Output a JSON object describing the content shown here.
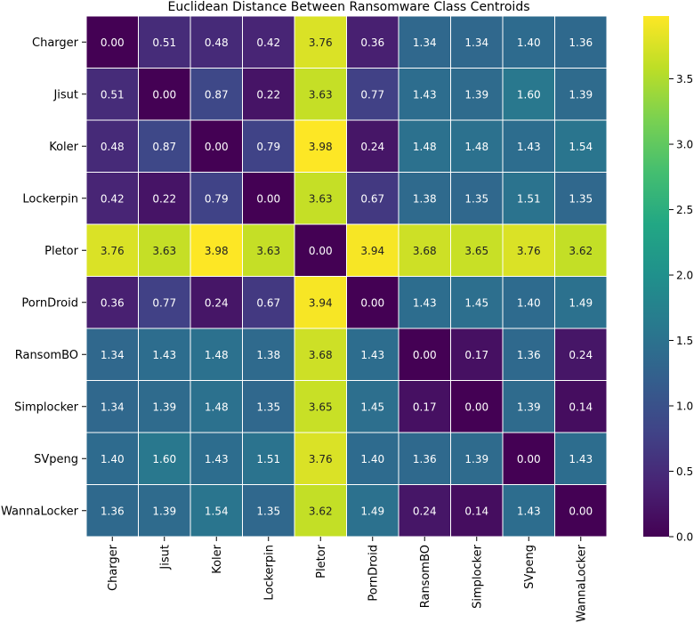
{
  "chart_data": {
    "type": "heatmap",
    "title": "Euclidean Distance Between Ransomware Class Centroids",
    "xlabel": "",
    "ylabel": "",
    "labels": [
      "Charger",
      "Jisut",
      "Koler",
      "Lockerpin",
      "Pletor",
      "PornDroid",
      "RansomBO",
      "Simplocker",
      "SVpeng",
      "WannaLocker"
    ],
    "matrix": [
      [
        0.0,
        0.51,
        0.48,
        0.42,
        3.76,
        0.36,
        1.34,
        1.34,
        1.4,
        1.36
      ],
      [
        0.51,
        0.0,
        0.87,
        0.22,
        3.63,
        0.77,
        1.43,
        1.39,
        1.6,
        1.39
      ],
      [
        0.48,
        0.87,
        0.0,
        0.79,
        3.98,
        0.24,
        1.48,
        1.48,
        1.43,
        1.54
      ],
      [
        0.42,
        0.22,
        0.79,
        0.0,
        3.63,
        0.67,
        1.38,
        1.35,
        1.51,
        1.35
      ],
      [
        3.76,
        3.63,
        3.98,
        3.63,
        0.0,
        3.94,
        3.68,
        3.65,
        3.76,
        3.62
      ],
      [
        0.36,
        0.77,
        0.24,
        0.67,
        3.94,
        0.0,
        1.43,
        1.45,
        1.4,
        1.49
      ],
      [
        1.34,
        1.43,
        1.48,
        1.38,
        3.68,
        1.43,
        0.0,
        0.17,
        1.36,
        0.24
      ],
      [
        1.34,
        1.39,
        1.48,
        1.35,
        3.65,
        1.45,
        0.17,
        0.0,
        1.39,
        0.14
      ],
      [
        1.4,
        1.6,
        1.43,
        1.51,
        3.76,
        1.4,
        1.36,
        1.39,
        0.0,
        1.43
      ],
      [
        1.36,
        1.39,
        1.54,
        1.35,
        3.62,
        1.49,
        0.24,
        0.14,
        1.43,
        0.0
      ]
    ],
    "colormap": "viridis",
    "vmin": 0.0,
    "vmax": 3.98,
    "colorbar_ticks": [
      0.0,
      0.5,
      1.0,
      1.5,
      2.0,
      2.5,
      3.0,
      3.5
    ],
    "annotation_dark_color": "#222222",
    "annotation_light_color": "#ffffff",
    "grid_line_color": "#ffffff"
  }
}
